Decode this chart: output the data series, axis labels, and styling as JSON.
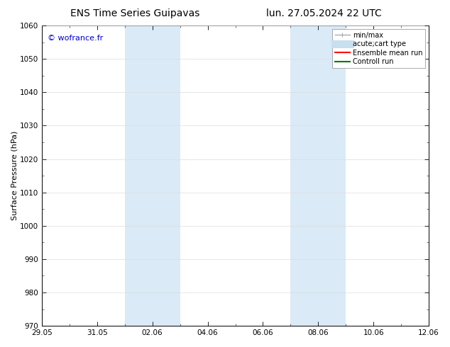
{
  "title_left": "ENS Time Series Guipavas",
  "title_right": "lun. 27.05.2024 22 UTC",
  "ylabel": "Surface Pressure (hPa)",
  "ylim": [
    970,
    1060
  ],
  "yticks": [
    970,
    980,
    990,
    1000,
    1010,
    1020,
    1030,
    1040,
    1050,
    1060
  ],
  "xtick_values": [
    0,
    2,
    4,
    6,
    8,
    10,
    12,
    14
  ],
  "xtick_labels": [
    "29.05",
    "31.05",
    "02.06",
    "04.06",
    "06.06",
    "08.06",
    "10.06",
    "12.06"
  ],
  "xlim": [
    0,
    14
  ],
  "watermark": "© wofrance.fr",
  "watermark_color": "#0000cc",
  "bg_color": "#ffffff",
  "plot_bg_color": "#ffffff",
  "shaded_regions": [
    {
      "x_start": 3,
      "x_end": 5,
      "color": "#daeaf7"
    },
    {
      "x_start": 9,
      "x_end": 11,
      "color": "#daeaf7"
    }
  ],
  "legend_entries": [
    {
      "label": "min/max",
      "color": "#aaaaaa",
      "linestyle": "-",
      "linewidth": 1.0,
      "type": "minmax"
    },
    {
      "label": "acute;cart type",
      "color": "#c8dff0",
      "linestyle": "-",
      "linewidth": 8,
      "type": "thick"
    },
    {
      "label": "Ensemble mean run",
      "color": "#ff0000",
      "linestyle": "-",
      "linewidth": 1.5,
      "type": "line"
    },
    {
      "label": "Controll run",
      "color": "#007700",
      "linestyle": "-",
      "linewidth": 1.5,
      "type": "line"
    }
  ],
  "grid_color": "#dddddd",
  "spine_color": "#000000",
  "tick_color": "#000000",
  "title_fontsize": 10,
  "axis_label_fontsize": 8,
  "tick_fontsize": 7.5,
  "legend_fontsize": 7,
  "watermark_fontsize": 8
}
